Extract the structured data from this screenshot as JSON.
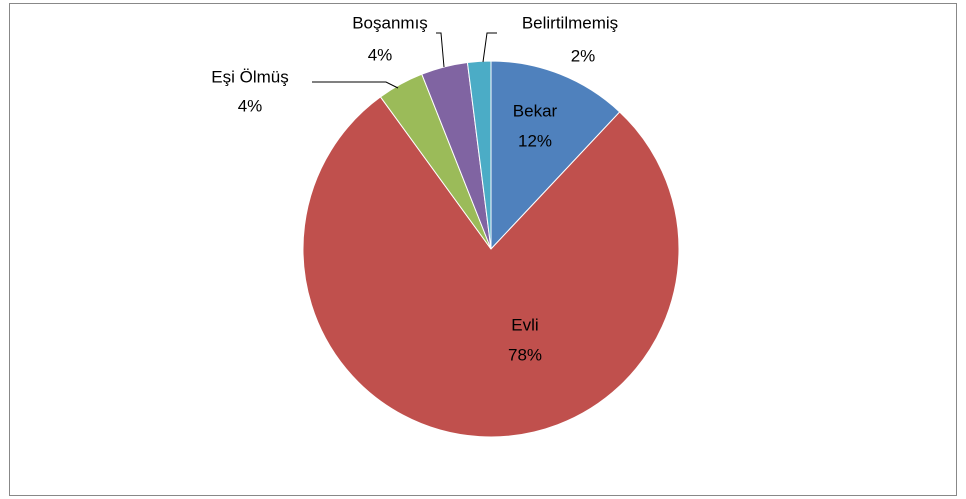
{
  "chart_data": {
    "type": "pie",
    "categories": [
      "Bekar",
      "Evli",
      "Eşi Ölmüş",
      "Boşanmış",
      "Belirtilmemiş"
    ],
    "values": [
      12,
      78,
      4,
      4,
      2
    ],
    "value_labels": [
      "12%",
      "78%",
      "4%",
      "4%",
      "2%"
    ],
    "colors": [
      "#4f81bd",
      "#c0504d",
      "#9bbb59",
      "#8064a2",
      "#4bacc6"
    ]
  }
}
